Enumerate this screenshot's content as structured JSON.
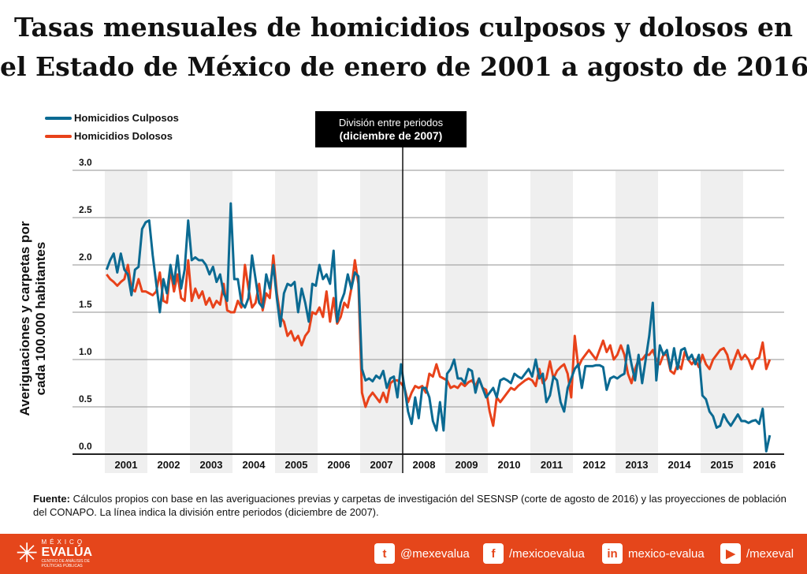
{
  "title": {
    "line1": "Tasas mensuales de homicidios culposos y dolosos en",
    "line2": "el Estado de México de enero de 2001 a agosto de 2016"
  },
  "legend": [
    {
      "label": "Homicidios Culposos",
      "color": "#0b6a92"
    },
    {
      "label": "Homicidios Dolosos",
      "color": "#e8421a"
    }
  ],
  "division": {
    "line1": "División entre periodos",
    "line2": "(diciembre de 2007)"
  },
  "chart_data": {
    "type": "line",
    "title": "Tasas mensuales de homicidios culposos y dolosos en el Estado de México de enero de 2001 a agosto de 2016",
    "ylabel": "Averiguaciones y carpetas por cada 100.000 habitantes",
    "xlabel": "",
    "x_start": "2001-01",
    "x_end": "2016-08",
    "frequency": "monthly",
    "ylim": [
      0,
      3.0
    ],
    "yticks": [
      "0.0",
      "0.5",
      "1.0",
      "1.5",
      "2.0",
      "2.5",
      "3.0"
    ],
    "xticks": [
      "2001",
      "2002",
      "2003",
      "2004",
      "2005",
      "2006",
      "2007",
      "2008",
      "2009",
      "2010",
      "2011",
      "2012",
      "2013",
      "2014",
      "2015",
      "2016"
    ],
    "grid": true,
    "legend_position": "top-left",
    "annotation": "División entre periodos (diciembre de 2007)",
    "annotation_x": "2007-12",
    "series": [
      {
        "name": "Homicidios Culposos",
        "color": "#0b6a92",
        "values": [
          1.95,
          2.05,
          2.12,
          1.92,
          2.12,
          1.95,
          1.9,
          1.68,
          1.95,
          1.98,
          2.38,
          2.45,
          2.47,
          2.1,
          1.8,
          1.5,
          1.85,
          1.7,
          2.0,
          1.8,
          2.1,
          1.75,
          1.95,
          2.47,
          2.05,
          2.08,
          2.05,
          2.05,
          2.0,
          1.9,
          1.98,
          1.82,
          1.9,
          1.7,
          1.62,
          2.65,
          1.85,
          1.85,
          1.6,
          1.55,
          1.65,
          2.1,
          1.85,
          1.6,
          1.55,
          1.9,
          1.75,
          2.0,
          1.65,
          1.35,
          1.7,
          1.8,
          1.78,
          1.82,
          1.5,
          1.75,
          1.6,
          1.4,
          1.8,
          1.78,
          2.0,
          1.85,
          1.9,
          1.8,
          2.15,
          1.4,
          1.6,
          1.7,
          1.9,
          1.75,
          1.92,
          1.88,
          0.9,
          0.78,
          0.8,
          0.77,
          0.83,
          0.8,
          0.88,
          0.7,
          0.8,
          0.82,
          0.6,
          0.95,
          0.7,
          0.45,
          0.32,
          0.6,
          0.38,
          0.7,
          0.7,
          0.6,
          0.35,
          0.25,
          0.55,
          0.25,
          0.85,
          0.9,
          1.0,
          0.8,
          0.8,
          0.75,
          0.9,
          0.88,
          0.65,
          0.8,
          0.7,
          0.6,
          0.65,
          0.7,
          0.6,
          0.78,
          0.8,
          0.78,
          0.75,
          0.85,
          0.82,
          0.8,
          0.85,
          0.9,
          0.82,
          1.0,
          0.8,
          0.85,
          0.55,
          0.62,
          0.82,
          0.78,
          0.55,
          0.45,
          0.7,
          0.8,
          0.9,
          0.95,
          0.7,
          0.93,
          0.93,
          0.93,
          0.94,
          0.94,
          0.92,
          0.68,
          0.8,
          0.82,
          0.8,
          0.83,
          0.85,
          1.15,
          0.95,
          0.78,
          1.05,
          0.75,
          1.0,
          1.25,
          1.6,
          0.78,
          1.15,
          1.05,
          1.1,
          0.9,
          1.12,
          0.9,
          1.1,
          1.12,
          1.0,
          1.05,
          0.95,
          1.05,
          0.62,
          0.58,
          0.45,
          0.4,
          0.28,
          0.3,
          0.42,
          0.35,
          0.3,
          0.36,
          0.42,
          0.35,
          0.35,
          0.33,
          0.35,
          0.36,
          0.32,
          0.48,
          0.03,
          0.2
        ]
      },
      {
        "name": "Homicidios Dolosos",
        "color": "#e8421a",
        "values": [
          1.9,
          1.85,
          1.82,
          1.78,
          1.82,
          1.85,
          2.0,
          1.75,
          1.72,
          1.85,
          1.72,
          1.72,
          1.7,
          1.68,
          1.72,
          1.92,
          1.62,
          1.6,
          1.95,
          1.72,
          1.9,
          1.65,
          1.62,
          2.05,
          1.62,
          1.75,
          1.65,
          1.72,
          1.58,
          1.65,
          1.55,
          1.62,
          1.58,
          1.8,
          1.52,
          1.5,
          1.5,
          1.62,
          1.55,
          2.0,
          1.75,
          1.55,
          1.6,
          1.8,
          1.52,
          1.7,
          1.65,
          2.1,
          1.7,
          1.45,
          1.4,
          1.25,
          1.3,
          1.2,
          1.25,
          1.15,
          1.25,
          1.3,
          1.5,
          1.48,
          1.55,
          1.45,
          1.72,
          1.4,
          1.65,
          1.38,
          1.45,
          1.6,
          1.55,
          1.75,
          2.05,
          1.8,
          0.65,
          0.5,
          0.6,
          0.65,
          0.6,
          0.55,
          0.65,
          0.55,
          0.75,
          0.78,
          0.78,
          0.75,
          0.7,
          0.55,
          0.65,
          0.72,
          0.7,
          0.72,
          0.65,
          0.85,
          0.82,
          0.95,
          0.82,
          0.8,
          0.78,
          0.7,
          0.72,
          0.7,
          0.75,
          0.72,
          0.76,
          0.78,
          0.72,
          0.8,
          0.7,
          0.68,
          0.45,
          0.3,
          0.6,
          0.55,
          0.6,
          0.65,
          0.7,
          0.68,
          0.72,
          0.75,
          0.78,
          0.8,
          0.78,
          0.72,
          0.9,
          0.75,
          0.8,
          0.98,
          0.8,
          0.88,
          0.92,
          0.95,
          0.85,
          0.6,
          1.25,
          0.92,
          1.0,
          1.05,
          1.1,
          1.05,
          1.0,
          1.1,
          1.2,
          1.08,
          1.15,
          1.0,
          1.05,
          1.15,
          1.05,
          0.85,
          0.75,
          0.9,
          1.0,
          1.0,
          1.05,
          1.05,
          1.1,
          1.0,
          0.95,
          1.05,
          1.05,
          0.88,
          0.85,
          0.95,
          0.9,
          1.08,
          1.0,
          0.95,
          1.0,
          0.92,
          1.05,
          0.95,
          0.9,
          1.0,
          1.05,
          1.1,
          1.12,
          1.05,
          0.9,
          1.0,
          1.1,
          1.0,
          1.05,
          1.0,
          0.9,
          1.0,
          1.02,
          1.18,
          0.9,
          1.0
        ]
      }
    ]
  },
  "source": {
    "label": "Fuente:",
    "text": " Cálculos propios con base en las averiguaciones previas y carpetas de investigación del SESNSP (corte de agosto de 2016) y las proyecciones de población del CONAPO. La línea indica la división entre periodos (diciembre de 2007)."
  },
  "footer": {
    "logo": {
      "line1": "MÉXICO",
      "line2": "EVALÚA",
      "line3": "CENTRO DE ANÁLISIS DE POLÍTICAS PÚBLICAS"
    },
    "brand_color": "#e5461b",
    "social": [
      {
        "icon": "twitter-icon",
        "glyph": "t",
        "label": "@mexevalua"
      },
      {
        "icon": "facebook-icon",
        "glyph": "f",
        "label": "/mexicoevalua"
      },
      {
        "icon": "linkedin-icon",
        "glyph": "in",
        "label": "mexico-evalua"
      },
      {
        "icon": "youtube-icon",
        "glyph": "▶",
        "label": "/mexeval"
      }
    ]
  }
}
